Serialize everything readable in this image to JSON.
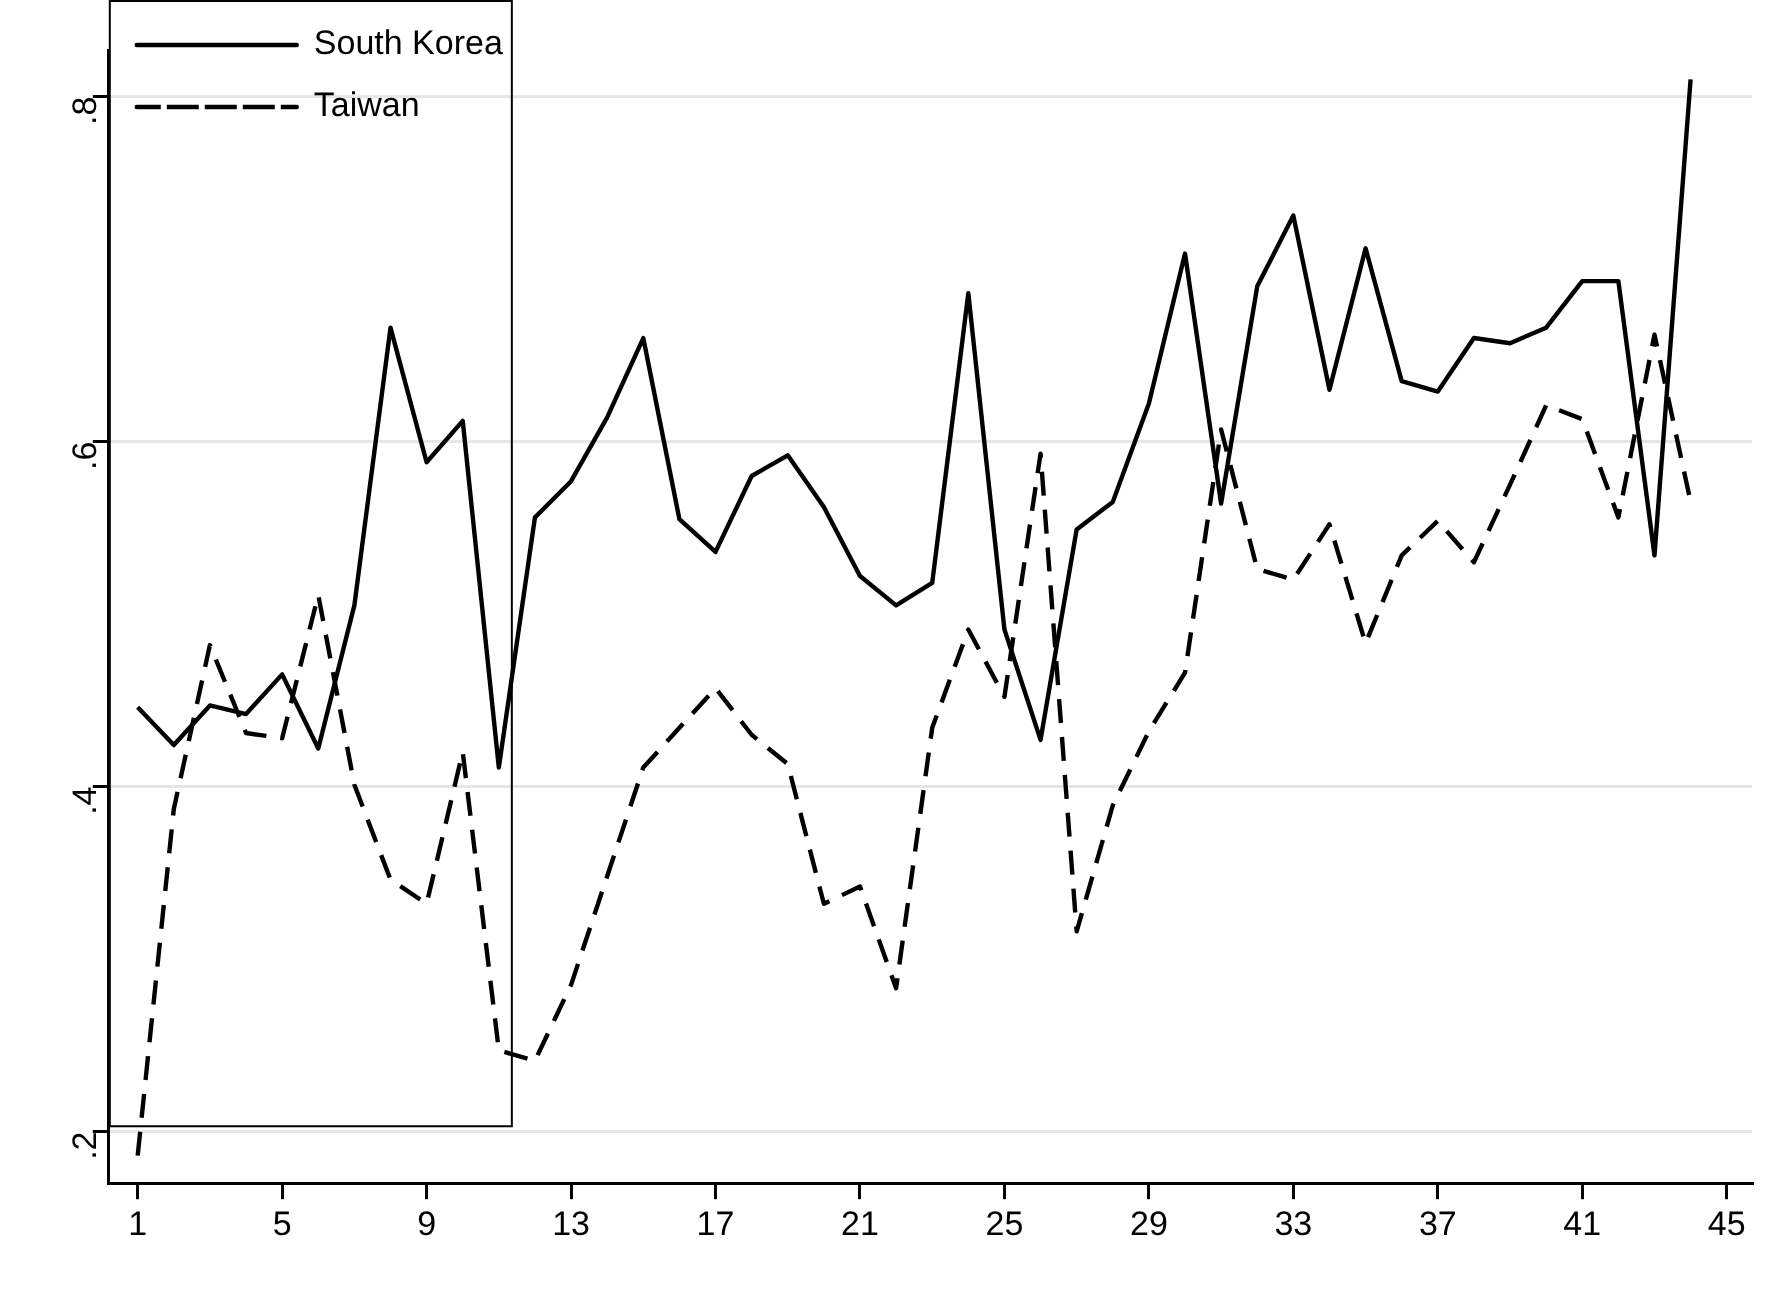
{
  "chart_data": {
    "type": "line",
    "x": [
      1,
      2,
      3,
      4,
      5,
      6,
      7,
      8,
      9,
      10,
      11,
      12,
      13,
      14,
      15,
      16,
      17,
      18,
      19,
      20,
      21,
      22,
      23,
      24,
      25,
      26,
      27,
      28,
      29,
      30,
      31,
      32,
      33,
      34,
      35,
      36,
      37,
      38,
      39,
      40,
      41,
      42,
      43,
      44
    ],
    "series": [
      {
        "name": "South Korea",
        "color": "#000000",
        "line_style": "solid",
        "values": [
          0.446,
          0.424,
          0.447,
          0.442,
          0.465,
          0.422,
          0.505,
          0.666,
          0.588,
          0.612,
          0.411,
          0.556,
          0.577,
          0.614,
          0.66,
          0.555,
          0.536,
          0.58,
          0.592,
          0.562,
          0.522,
          0.505,
          0.518,
          0.686,
          0.491,
          0.427,
          0.549,
          0.565,
          0.622,
          0.709,
          0.564,
          0.69,
          0.731,
          0.63,
          0.712,
          0.635,
          0.629,
          0.66,
          0.657,
          0.666,
          0.693,
          0.693,
          0.534,
          0.81
        ]
      },
      {
        "name": "Taiwan",
        "color": "#000000",
        "line_style": "dashed",
        "values": [
          0.186,
          0.387,
          0.482,
          0.431,
          0.428,
          0.511,
          0.401,
          0.346,
          0.332,
          0.42,
          0.247,
          0.241,
          0.285,
          0.348,
          0.411,
          0.434,
          0.457,
          0.43,
          0.413,
          0.332,
          0.342,
          0.283,
          0.434,
          0.491,
          0.452,
          0.593,
          0.316,
          0.389,
          0.432,
          0.466,
          0.607,
          0.526,
          0.52,
          0.552,
          0.483,
          0.534,
          0.554,
          0.53,
          0.575,
          0.621,
          0.613,
          0.556,
          0.662,
          0.565
        ]
      }
    ],
    "xlim": [
      0.2,
      45.7
    ],
    "xticks": [
      1,
      5,
      9,
      13,
      17,
      21,
      25,
      29,
      33,
      37,
      41,
      45
    ],
    "ylim": [
      0.17,
      0.827
    ],
    "yticks": [
      {
        "value": 0.2,
        "label": ".2"
      },
      {
        "value": 0.4,
        "label": ".4"
      },
      {
        "value": 0.6,
        "label": ".6"
      },
      {
        "value": 0.8,
        "label": ".8"
      }
    ],
    "grid": "y",
    "legend": "top left",
    "marker": "none"
  }
}
